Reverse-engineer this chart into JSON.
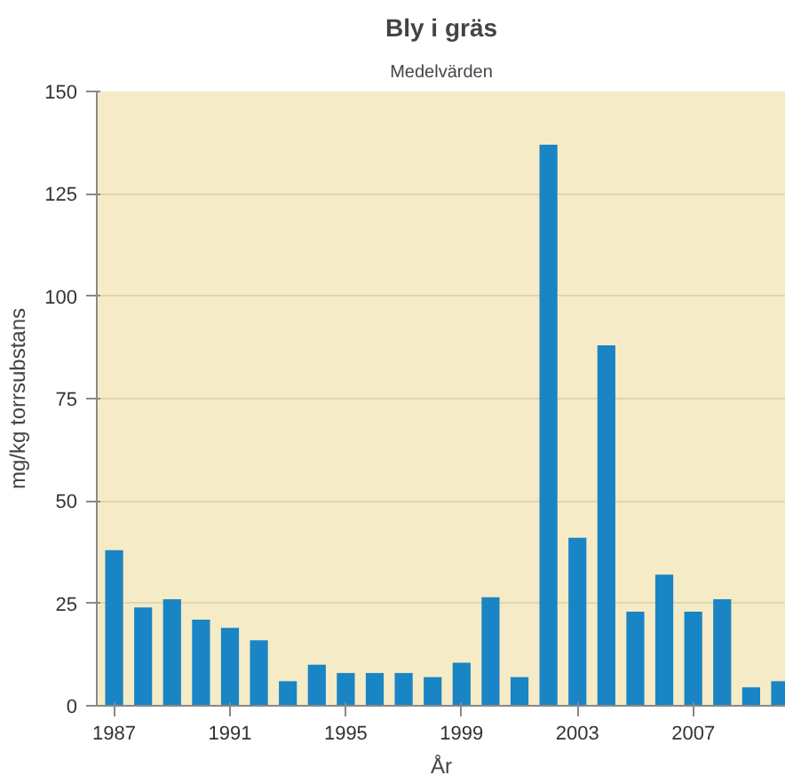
{
  "chart_data": {
    "type": "bar",
    "title": "Bly i gräs",
    "subtitle": "Medelvärden",
    "xlabel": "År",
    "ylabel": "mg/kg torrsubstans",
    "x": [
      1987,
      1988,
      1989,
      1990,
      1991,
      1992,
      1993,
      1994,
      1995,
      1996,
      1997,
      1998,
      1999,
      2000,
      2001,
      2002,
      2003,
      2004,
      2005,
      2006,
      2007,
      2008,
      2009,
      2010
    ],
    "values": [
      38,
      24,
      26,
      21,
      19,
      16,
      6,
      10,
      8,
      8,
      8,
      7,
      10.5,
      26.5,
      7,
      137,
      41,
      88,
      23,
      32,
      23,
      26,
      4.5,
      6
    ],
    "color": "#1a85c4",
    "xlim": [
      1986.4,
      2010.2
    ],
    "xticks": [
      1987,
      1991,
      1995,
      1999,
      2003,
      2007
    ],
    "ylim": [
      0,
      150
    ],
    "yticks": [
      0,
      25,
      50,
      75,
      100,
      125,
      150
    ],
    "grid": "y"
  }
}
